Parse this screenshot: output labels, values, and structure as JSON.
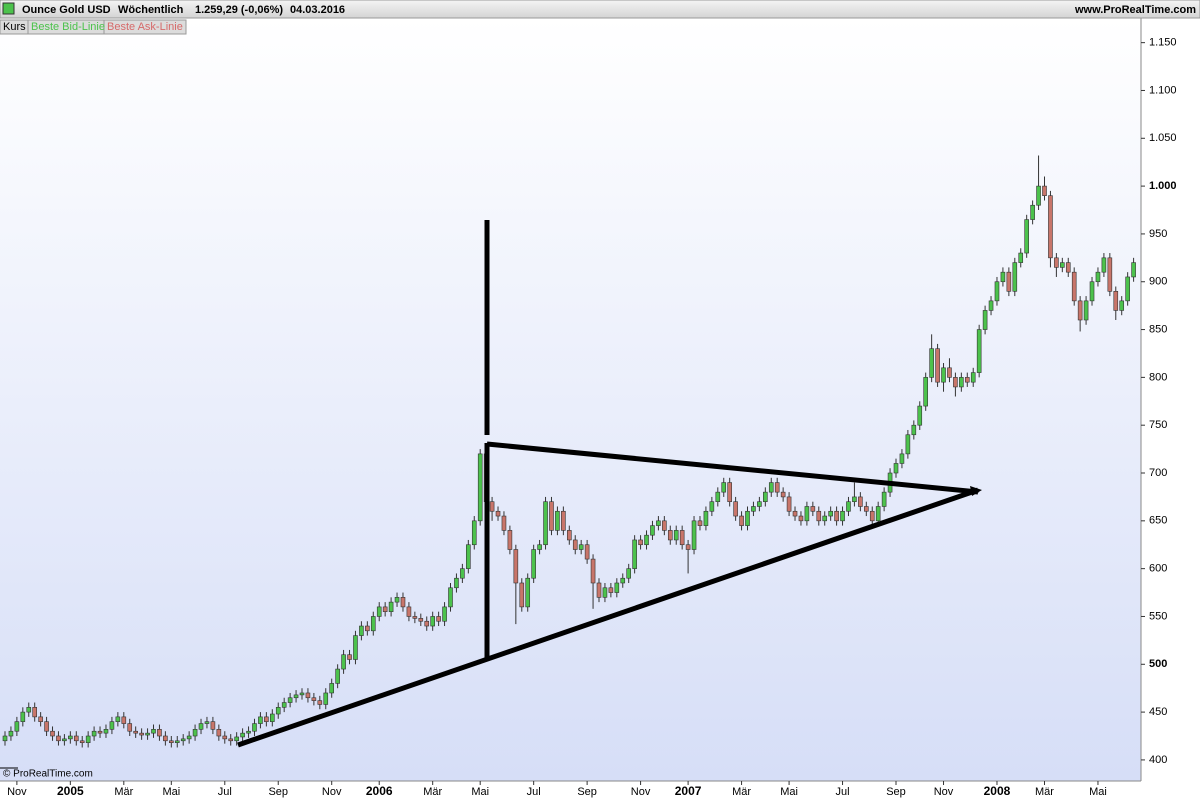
{
  "header": {
    "instrument": "Ounce Gold USD",
    "period": "Wöchentlich",
    "quote": "1.259,29 (-0,06%)",
    "date": "04.03.2016",
    "site": "www.ProRealTime.com"
  },
  "legend": {
    "kurs": "Kurs",
    "bid": "Beste Bid-Linie",
    "ask": "Beste Ask-Linie"
  },
  "footer": "© ProRealTime.com",
  "chart_data": {
    "type": "candlestick",
    "up_color": "#4cc24c",
    "down_color": "#c8756a",
    "outline": "#333333",
    "ylim": [
      379,
      1158
    ],
    "yticks": [
      400,
      450,
      500,
      550,
      600,
      650,
      700,
      750,
      800,
      850,
      900,
      950,
      {
        "value": 1000,
        "label": "1.000"
      },
      {
        "value": 1050,
        "label": "1.050"
      },
      {
        "value": 1100,
        "label": "1.100"
      },
      {
        "value": 1150,
        "label": "1.150"
      }
    ],
    "categories": [
      null,
      null,
      "Nov",
      null,
      null,
      null,
      null,
      null,
      null,
      null,
      null,
      "2005",
      null,
      null,
      null,
      null,
      null,
      null,
      null,
      null,
      "Mär",
      null,
      null,
      null,
      null,
      null,
      null,
      null,
      "Mai",
      null,
      null,
      null,
      null,
      null,
      null,
      null,
      null,
      "Jul",
      null,
      null,
      null,
      null,
      null,
      null,
      null,
      null,
      "Sep",
      null,
      null,
      null,
      null,
      null,
      null,
      null,
      null,
      "Nov",
      null,
      null,
      null,
      null,
      null,
      null,
      null,
      "2006",
      null,
      null,
      null,
      null,
      null,
      null,
      null,
      null,
      "Mär",
      null,
      null,
      null,
      null,
      null,
      null,
      null,
      "Mai",
      null,
      null,
      null,
      null,
      null,
      null,
      null,
      null,
      "Jul",
      null,
      null,
      null,
      null,
      null,
      null,
      null,
      null,
      "Sep",
      null,
      null,
      null,
      null,
      null,
      null,
      null,
      null,
      "Nov",
      null,
      null,
      null,
      null,
      null,
      null,
      null,
      "2007",
      null,
      null,
      null,
      null,
      null,
      null,
      null,
      null,
      "Mär",
      null,
      null,
      null,
      null,
      null,
      null,
      null,
      "Mai",
      null,
      null,
      null,
      null,
      null,
      null,
      null,
      null,
      "Jul",
      null,
      null,
      null,
      null,
      null,
      null,
      null,
      null,
      "Sep",
      null,
      null,
      null,
      null,
      null,
      null,
      null,
      "Nov",
      null,
      null,
      null,
      null,
      null,
      null,
      null,
      null,
      "2008",
      null,
      null,
      null,
      null,
      null,
      null,
      null,
      "Mär",
      null,
      null,
      null,
      null,
      null,
      null,
      null,
      null,
      "Mai",
      null,
      null,
      null,
      null,
      null,
      null
    ],
    "candles": [
      [
        420,
        430,
        415,
        425
      ],
      [
        425,
        435,
        420,
        430
      ],
      [
        430,
        445,
        425,
        440
      ],
      [
        440,
        455,
        435,
        450
      ],
      [
        450,
        460,
        445,
        455
      ],
      [
        455,
        460,
        440,
        445
      ],
      [
        445,
        450,
        435,
        440
      ],
      [
        440,
        445,
        425,
        430
      ],
      [
        430,
        435,
        420,
        425
      ],
      [
        425,
        430,
        415,
        420
      ],
      [
        420,
        427,
        415,
        422
      ],
      [
        422,
        430,
        417,
        425
      ],
      [
        425,
        430,
        415,
        420
      ],
      [
        420,
        425,
        413,
        418
      ],
      [
        418,
        430,
        413,
        425
      ],
      [
        425,
        435,
        420,
        430
      ],
      [
        430,
        435,
        423,
        428
      ],
      [
        428,
        437,
        423,
        432
      ],
      [
        432,
        445,
        427,
        440
      ],
      [
        440,
        450,
        435,
        445
      ],
      [
        445,
        450,
        433,
        438
      ],
      [
        438,
        443,
        425,
        430
      ],
      [
        430,
        435,
        423,
        428
      ],
      [
        428,
        433,
        421,
        426
      ],
      [
        426,
        433,
        421,
        428
      ],
      [
        428,
        437,
        423,
        432
      ],
      [
        432,
        437,
        420,
        425
      ],
      [
        425,
        430,
        415,
        420
      ],
      [
        420,
        425,
        413,
        418
      ],
      [
        418,
        425,
        413,
        420
      ],
      [
        420,
        427,
        415,
        422
      ],
      [
        422,
        430,
        417,
        425
      ],
      [
        425,
        437,
        420,
        432
      ],
      [
        432,
        443,
        427,
        438
      ],
      [
        438,
        445,
        433,
        440
      ],
      [
        440,
        445,
        427,
        432
      ],
      [
        432,
        437,
        420,
        425
      ],
      [
        425,
        430,
        417,
        422
      ],
      [
        422,
        427,
        415,
        420
      ],
      [
        420,
        429,
        415,
        424
      ],
      [
        424,
        433,
        419,
        428
      ],
      [
        428,
        435,
        423,
        430
      ],
      [
        430,
        443,
        425,
        438
      ],
      [
        438,
        450,
        433,
        445
      ],
      [
        445,
        450,
        435,
        440
      ],
      [
        440,
        453,
        435,
        448
      ],
      [
        448,
        460,
        443,
        455
      ],
      [
        455,
        465,
        450,
        460
      ],
      [
        460,
        470,
        455,
        465
      ],
      [
        465,
        473,
        460,
        468
      ],
      [
        468,
        475,
        463,
        470
      ],
      [
        470,
        475,
        460,
        465
      ],
      [
        465,
        470,
        457,
        462
      ],
      [
        462,
        467,
        453,
        458
      ],
      [
        458,
        475,
        453,
        470
      ],
      [
        470,
        485,
        465,
        480
      ],
      [
        480,
        500,
        475,
        495
      ],
      [
        495,
        515,
        490,
        510
      ],
      [
        510,
        515,
        500,
        505
      ],
      [
        505,
        535,
        500,
        530
      ],
      [
        530,
        545,
        525,
        540
      ],
      [
        540,
        545,
        530,
        535
      ],
      [
        535,
        555,
        530,
        550
      ],
      [
        550,
        565,
        545,
        560
      ],
      [
        560,
        565,
        550,
        555
      ],
      [
        555,
        570,
        550,
        565
      ],
      [
        565,
        575,
        560,
        570
      ],
      [
        570,
        575,
        555,
        560
      ],
      [
        560,
        565,
        545,
        550
      ],
      [
        550,
        555,
        543,
        548
      ],
      [
        548,
        553,
        540,
        545
      ],
      [
        545,
        550,
        535,
        540
      ],
      [
        540,
        555,
        535,
        550
      ],
      [
        550,
        555,
        540,
        545
      ],
      [
        545,
        565,
        540,
        560
      ],
      [
        560,
        585,
        555,
        580
      ],
      [
        580,
        595,
        575,
        590
      ],
      [
        590,
        605,
        585,
        600
      ],
      [
        600,
        630,
        595,
        625
      ],
      [
        625,
        655,
        620,
        650
      ],
      [
        650,
        725,
        645,
        720
      ],
      [
        720,
        730,
        660,
        670
      ],
      [
        670,
        675,
        650,
        660
      ],
      [
        660,
        665,
        650,
        655
      ],
      [
        655,
        660,
        635,
        640
      ],
      [
        640,
        645,
        615,
        620
      ],
      [
        620,
        625,
        542,
        585
      ],
      [
        585,
        590,
        555,
        560
      ],
      [
        560,
        595,
        555,
        590
      ],
      [
        590,
        625,
        585,
        620
      ],
      [
        620,
        630,
        615,
        625
      ],
      [
        625,
        675,
        620,
        670
      ],
      [
        670,
        675,
        635,
        640
      ],
      [
        640,
        665,
        635,
        660
      ],
      [
        660,
        665,
        635,
        640
      ],
      [
        640,
        645,
        625,
        630
      ],
      [
        630,
        635,
        615,
        620
      ],
      [
        620,
        630,
        615,
        625
      ],
      [
        625,
        630,
        605,
        610
      ],
      [
        610,
        615,
        558,
        585
      ],
      [
        585,
        590,
        565,
        570
      ],
      [
        570,
        585,
        565,
        580
      ],
      [
        580,
        585,
        570,
        575
      ],
      [
        575,
        590,
        570,
        585
      ],
      [
        585,
        595,
        580,
        590
      ],
      [
        590,
        605,
        585,
        600
      ],
      [
        600,
        635,
        595,
        630
      ],
      [
        630,
        635,
        620,
        625
      ],
      [
        625,
        640,
        620,
        635
      ],
      [
        635,
        650,
        630,
        645
      ],
      [
        645,
        655,
        640,
        650
      ],
      [
        650,
        655,
        635,
        640
      ],
      [
        640,
        645,
        625,
        630
      ],
      [
        630,
        645,
        625,
        640
      ],
      [
        640,
        645,
        620,
        625
      ],
      [
        625,
        630,
        595,
        620
      ],
      [
        620,
        655,
        615,
        650
      ],
      [
        650,
        655,
        640,
        645
      ],
      [
        645,
        665,
        640,
        660
      ],
      [
        660,
        675,
        655,
        670
      ],
      [
        670,
        685,
        665,
        680
      ],
      [
        680,
        695,
        675,
        690
      ],
      [
        690,
        695,
        665,
        670
      ],
      [
        670,
        675,
        650,
        655
      ],
      [
        655,
        660,
        640,
        645
      ],
      [
        645,
        665,
        640,
        660
      ],
      [
        660,
        670,
        655,
        665
      ],
      [
        665,
        675,
        660,
        670
      ],
      [
        670,
        685,
        665,
        680
      ],
      [
        680,
        695,
        675,
        690
      ],
      [
        690,
        695,
        675,
        680
      ],
      [
        680,
        685,
        670,
        675
      ],
      [
        675,
        680,
        655,
        660
      ],
      [
        660,
        665,
        650,
        655
      ],
      [
        655,
        660,
        645,
        650
      ],
      [
        650,
        670,
        645,
        665
      ],
      [
        665,
        670,
        655,
        660
      ],
      [
        660,
        665,
        645,
        650
      ],
      [
        650,
        660,
        645,
        655
      ],
      [
        655,
        665,
        650,
        660
      ],
      [
        660,
        665,
        645,
        650
      ],
      [
        650,
        665,
        645,
        660
      ],
      [
        660,
        675,
        655,
        670
      ],
      [
        670,
        690,
        665,
        675
      ],
      [
        675,
        680,
        660,
        665
      ],
      [
        665,
        670,
        655,
        660
      ],
      [
        660,
        665,
        643,
        650
      ],
      [
        650,
        670,
        645,
        665
      ],
      [
        665,
        685,
        660,
        680
      ],
      [
        680,
        705,
        675,
        700
      ],
      [
        700,
        715,
        695,
        710
      ],
      [
        710,
        725,
        705,
        720
      ],
      [
        720,
        745,
        715,
        740
      ],
      [
        740,
        755,
        735,
        750
      ],
      [
        750,
        775,
        745,
        770
      ],
      [
        770,
        805,
        765,
        800
      ],
      [
        800,
        845,
        795,
        830
      ],
      [
        830,
        835,
        790,
        795
      ],
      [
        795,
        815,
        785,
        810
      ],
      [
        810,
        820,
        795,
        800
      ],
      [
        800,
        805,
        780,
        790
      ],
      [
        790,
        805,
        785,
        800
      ],
      [
        800,
        805,
        790,
        795
      ],
      [
        795,
        810,
        790,
        805
      ],
      [
        805,
        855,
        800,
        850
      ],
      [
        850,
        875,
        845,
        870
      ],
      [
        870,
        885,
        865,
        880
      ],
      [
        880,
        905,
        875,
        900
      ],
      [
        900,
        915,
        895,
        910
      ],
      [
        910,
        915,
        885,
        890
      ],
      [
        890,
        925,
        885,
        920
      ],
      [
        920,
        935,
        915,
        930
      ],
      [
        930,
        970,
        925,
        965
      ],
      [
        965,
        985,
        960,
        980
      ],
      [
        980,
        1032,
        975,
        1000
      ],
      [
        1000,
        1010,
        985,
        990
      ],
      [
        990,
        995,
        915,
        925
      ],
      [
        925,
        930,
        905,
        915
      ],
      [
        915,
        925,
        910,
        920
      ],
      [
        920,
        925,
        905,
        910
      ],
      [
        910,
        915,
        875,
        880
      ],
      [
        880,
        885,
        848,
        860
      ],
      [
        860,
        885,
        855,
        880
      ],
      [
        880,
        905,
        875,
        900
      ],
      [
        900,
        915,
        895,
        910
      ],
      [
        910,
        930,
        905,
        925
      ],
      [
        925,
        930,
        885,
        890
      ],
      [
        890,
        895,
        860,
        870
      ],
      [
        870,
        885,
        865,
        880
      ],
      [
        880,
        910,
        875,
        905
      ],
      [
        905,
        925,
        900,
        920
      ]
    ]
  }
}
